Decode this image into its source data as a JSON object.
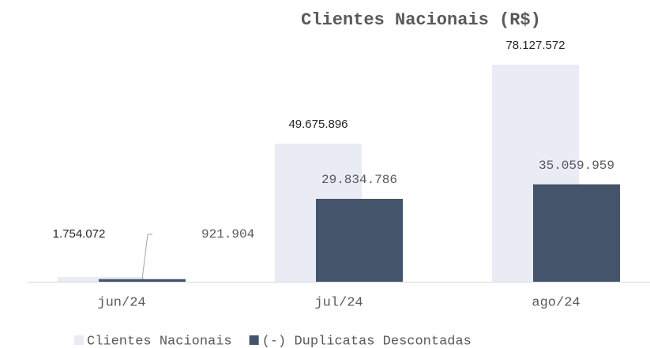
{
  "chart_data": {
    "type": "bar",
    "title": "Clientes Nacionais (R$)",
    "categories": [
      "jun/24",
      "jul/24",
      "ago/24"
    ],
    "series": [
      {
        "name": "Clientes Nacionais",
        "color": "#e9ebf5",
        "values": [
          1754072,
          49675896,
          78127572
        ],
        "value_labels": [
          "1.754.072",
          "49.675.896",
          "78.127.572"
        ]
      },
      {
        "name": "(-) Duplicatas Descontadas",
        "color": "#44546a",
        "values": [
          921904,
          29834786,
          35059959
        ],
        "value_labels": [
          "921.904",
          "29.834.786",
          "35.059.959"
        ]
      }
    ],
    "ylim": [
      0,
      80000000
    ]
  }
}
